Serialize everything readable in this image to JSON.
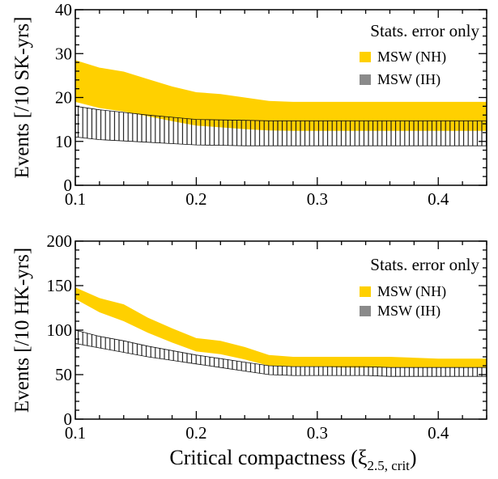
{
  "colors": {
    "nh_fill": "#ffd000",
    "ih_stroke": "#111111",
    "legend_ih_swatch": "#8a8a8a",
    "axis": "#000000"
  },
  "shared": {
    "xlabel_main": "Critical compactness (ξ",
    "xlabel_sub": "2.5, crit",
    "xlabel_close": ")"
  },
  "chart_data": [
    {
      "type": "area",
      "ylabel": "Events [/10 SK-yrs]",
      "xlim": [
        0.1,
        0.44
      ],
      "ylim": [
        0,
        40
      ],
      "xticks": [
        0.1,
        0.2,
        0.3,
        0.4
      ],
      "xtick_labels": [
        "0.1",
        "0.2",
        "0.3",
        "0.4"
      ],
      "yticks": [
        0,
        10,
        20,
        30,
        40
      ],
      "ytick_labels": [
        "0",
        "10",
        "20",
        "30",
        "40"
      ],
      "legend_position": "top-right",
      "legend_title": "Stats. error only",
      "series": [
        {
          "name": "MSW (NH)",
          "style": "solid",
          "x": [
            0.1,
            0.12,
            0.14,
            0.16,
            0.18,
            0.2,
            0.22,
            0.24,
            0.26,
            0.28,
            0.3,
            0.32,
            0.34,
            0.36,
            0.38,
            0.4,
            0.42,
            0.44
          ],
          "upper": [
            28.5,
            26.8,
            25.9,
            24.2,
            22.5,
            21.2,
            20.8,
            20.0,
            19.2,
            19.0,
            19.0,
            19.0,
            19.0,
            19.0,
            19.0,
            19.0,
            19.0,
            19.0
          ],
          "lower": [
            19.0,
            17.6,
            16.8,
            15.7,
            14.6,
            13.6,
            13.2,
            12.8,
            12.5,
            12.4,
            12.4,
            12.4,
            12.4,
            12.4,
            12.4,
            12.4,
            12.4,
            12.4
          ]
        },
        {
          "name": "MSW (IH)",
          "style": "hatched",
          "x": [
            0.1,
            0.12,
            0.14,
            0.16,
            0.18,
            0.2,
            0.22,
            0.24,
            0.26,
            0.28,
            0.3,
            0.32,
            0.34,
            0.36,
            0.38,
            0.4,
            0.42,
            0.44
          ],
          "upper": [
            18.0,
            17.2,
            16.6,
            16.0,
            15.5,
            15.0,
            14.9,
            14.8,
            14.7,
            14.7,
            14.7,
            14.7,
            14.7,
            14.7,
            14.7,
            14.7,
            14.7,
            14.7
          ],
          "lower": [
            11.0,
            10.4,
            10.1,
            9.8,
            9.5,
            9.2,
            9.1,
            9.0,
            9.0,
            9.0,
            9.0,
            9.0,
            9.0,
            9.0,
            9.0,
            9.0,
            9.0,
            9.0
          ]
        }
      ]
    },
    {
      "type": "area",
      "ylabel": "Events [/10 HK-yrs]",
      "xlim": [
        0.1,
        0.44
      ],
      "ylim": [
        0,
        200
      ],
      "xticks": [
        0.1,
        0.2,
        0.3,
        0.4
      ],
      "xtick_labels": [
        "0.1",
        "0.2",
        "0.3",
        "0.4"
      ],
      "yticks": [
        0,
        50,
        100,
        150,
        200
      ],
      "ytick_labels": [
        "0",
        "50",
        "100",
        "150",
        "200"
      ],
      "legend_position": "top-right",
      "legend_title": "Stats. error only",
      "series": [
        {
          "name": "MSW (NH)",
          "style": "solid",
          "x": [
            0.1,
            0.12,
            0.14,
            0.16,
            0.18,
            0.2,
            0.22,
            0.24,
            0.26,
            0.28,
            0.3,
            0.32,
            0.34,
            0.36,
            0.38,
            0.4,
            0.42,
            0.44
          ],
          "upper": [
            148,
            136,
            129,
            114,
            102,
            91,
            88,
            81,
            72,
            70,
            70,
            70,
            70,
            70,
            69,
            68,
            68,
            68
          ],
          "lower": [
            135,
            120,
            110,
            97,
            86,
            76,
            73,
            67,
            60,
            59,
            59,
            58,
            58,
            58,
            58,
            58,
            58,
            58
          ]
        },
        {
          "name": "MSW (IH)",
          "style": "hatched",
          "x": [
            0.1,
            0.12,
            0.14,
            0.16,
            0.18,
            0.2,
            0.22,
            0.24,
            0.26,
            0.28,
            0.3,
            0.32,
            0.34,
            0.36,
            0.38,
            0.4,
            0.42,
            0.44
          ],
          "upper": [
            100,
            93,
            88,
            82,
            77,
            72,
            68,
            64,
            60,
            59,
            59,
            59,
            59,
            58,
            58,
            58,
            58,
            58
          ],
          "lower": [
            85,
            80,
            75,
            70,
            66,
            62,
            58,
            54,
            50,
            49,
            49,
            49,
            49,
            48,
            48,
            48,
            48,
            48
          ]
        }
      ]
    }
  ]
}
